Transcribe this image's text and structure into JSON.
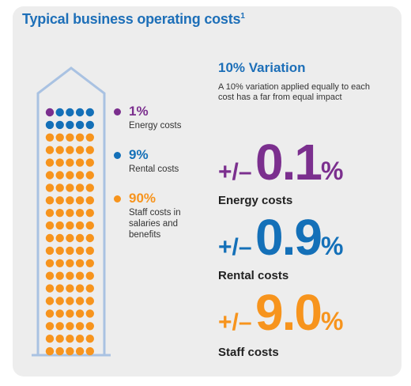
{
  "title": "Typical business operating costs",
  "title_footnote": "1",
  "colors": {
    "energy": "#7b2f8e",
    "rental": "#1470b8",
    "staff": "#f7941d",
    "outline": "#a9c2e2",
    "accent": "#1d6fb8"
  },
  "legend": [
    {
      "key": "energy",
      "pct": "1%",
      "label": "Energy costs"
    },
    {
      "key": "rental",
      "pct": "9%",
      "label": "Rental costs"
    },
    {
      "key": "staff",
      "pct": "90%",
      "label": "Staff costs in salaries and benefits"
    }
  ],
  "chart_data": {
    "type": "dot-matrix",
    "columns": 5,
    "rows": 20,
    "series": [
      {
        "name": "Energy costs",
        "value": 1
      },
      {
        "name": "Rental costs",
        "value": 9
      },
      {
        "name": "Staff costs in salaries and benefits",
        "value": 90
      }
    ]
  },
  "variation": {
    "title": "10% Variation",
    "description": "A 10% variation applied equally to each cost has a far from equal impact",
    "items": [
      {
        "key": "energy",
        "sign": "+/–",
        "value": "0.1",
        "pct": "%",
        "label": "Energy costs"
      },
      {
        "key": "rental",
        "sign": "+/–",
        "value": "0.9",
        "pct": "%",
        "label": "Rental costs"
      },
      {
        "key": "staff",
        "sign": "+/–",
        "value": "9.0",
        "pct": "%",
        "label": "Staff costs"
      }
    ]
  }
}
